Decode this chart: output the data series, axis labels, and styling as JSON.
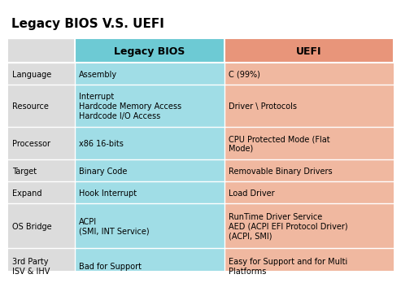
{
  "title": "Legacy BIOS V.S. UEFI",
  "title_fontsize": 11,
  "col_header_bios": "Legacy BIOS",
  "col_header_uefi": "UEFI",
  "header_fontsize": 9,
  "cell_fontsize": 7,
  "row_label_fontsize": 7,
  "color_header_bios": "#6dcad4",
  "color_header_uefi": "#e8957a",
  "color_row_label": "#dcdcdc",
  "color_bios_light": "#a0dde6",
  "color_uefi_light": "#f0b8a0",
  "rows": [
    {
      "label": "Language",
      "bios": "Assembly",
      "uefi": "C (99%)"
    },
    {
      "label": "Resource",
      "bios": "Interrupt\nHardcode Memory Access\nHardcode I/O Access",
      "uefi": "Driver \\ Protocols"
    },
    {
      "label": "Processor",
      "bios": "x86 16-bits",
      "uefi": "CPU Protected Mode (Flat\nMode)"
    },
    {
      "label": "Target",
      "bios": "Binary Code",
      "uefi": "Removable Binary Drivers"
    },
    {
      "label": "Expand",
      "bios": "Hook Interrupt",
      "uefi": "Load Driver"
    },
    {
      "label": "OS Bridge",
      "bios": "ACPI\n(SMI, INT Service)",
      "uefi": "RunTime Driver Service\nAED (ACPI EFI Protocol Driver)\n(ACPI, SMI)"
    },
    {
      "label": "3rd Party\nISV & IHV",
      "bios": "Bad for Support",
      "uefi": "Easy for Support and for Multi\nPlatforms"
    }
  ]
}
